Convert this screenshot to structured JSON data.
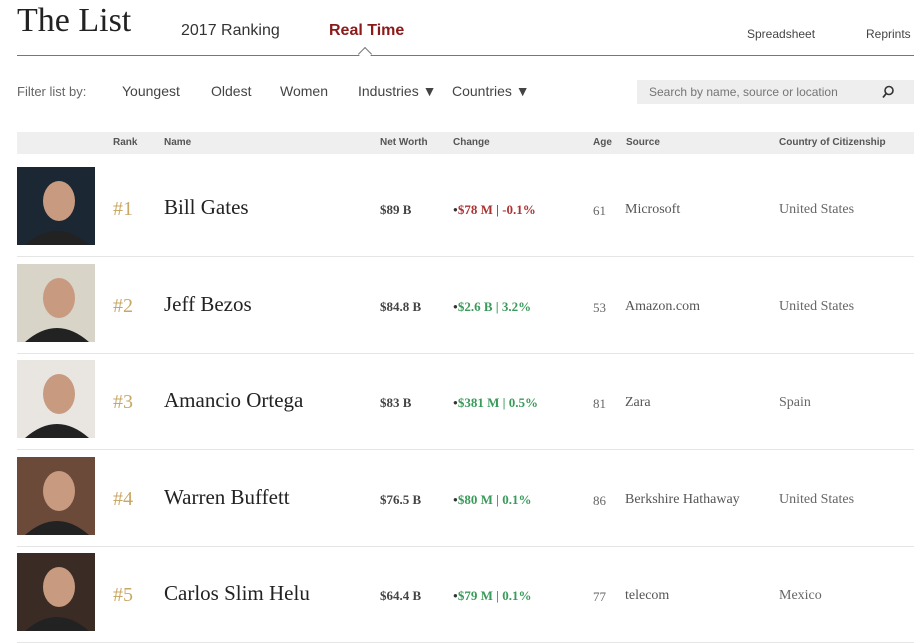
{
  "header": {
    "title": "The List",
    "tabs": [
      {
        "label": "2017 Ranking"
      },
      {
        "label": "Real Time",
        "active": true
      }
    ],
    "links": [
      "Spreadsheet",
      "Reprints"
    ]
  },
  "filters": {
    "label": "Filter list by:",
    "items": [
      "Youngest",
      "Oldest",
      "Women",
      "Industries ▼",
      "Countries ▼"
    ],
    "search_placeholder": "Search by name, source or location"
  },
  "table": {
    "columns": [
      "Rank",
      "Name",
      "Net Worth",
      "Change",
      "Age",
      "Source",
      "Country of Citizenship"
    ],
    "rows": [
      {
        "rank": "#1",
        "name": "Bill Gates",
        "net_worth": "$89 B",
        "change": "$78 M | -0.1%",
        "direction": "down",
        "age": "61",
        "source": "Microsoft",
        "country": "United States",
        "photo_bg": "#1b2733"
      },
      {
        "rank": "#2",
        "name": "Jeff Bezos",
        "net_worth": "$84.8 B",
        "change": "$2.6 B | 3.2%",
        "direction": "up",
        "age": "53",
        "source": "Amazon.com",
        "country": "United States",
        "photo_bg": "#d8d4c8"
      },
      {
        "rank": "#3",
        "name": "Amancio Ortega",
        "net_worth": "$83 B",
        "change": "$381 M | 0.5%",
        "direction": "up",
        "age": "81",
        "source": "Zara",
        "country": "Spain",
        "photo_bg": "#e9e6e2"
      },
      {
        "rank": "#4",
        "name": "Warren Buffett",
        "net_worth": "$76.5 B",
        "change": "$80 M | 0.1%",
        "direction": "up",
        "age": "86",
        "source": "Berkshire Hathaway",
        "country": "United States",
        "photo_bg": "#6b4a3a"
      },
      {
        "rank": "#5",
        "name": "Carlos Slim Helu",
        "net_worth": "$64.4 B",
        "change": "$79 M | 0.1%",
        "direction": "up",
        "age": "77",
        "source": "telecom",
        "country": "Mexico",
        "photo_bg": "#3a2c24"
      }
    ]
  },
  "colors": {
    "accent": "#8b1a1a",
    "up": "#3a9a5a",
    "down": "#aa3333",
    "rank": "#c9a766"
  }
}
